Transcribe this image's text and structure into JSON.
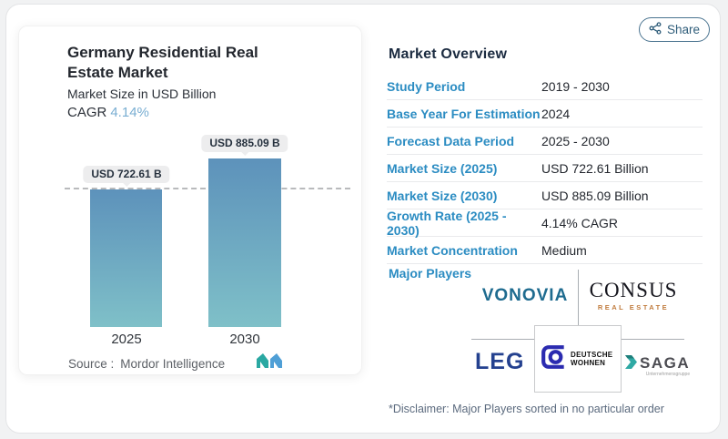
{
  "share": {
    "label": "Share"
  },
  "chart_card": {
    "title": "Germany Residential Real Estate Market",
    "subtitle": "Market Size in USD Billion",
    "cagr_label": "CAGR",
    "cagr_value": "4.14%",
    "source_label": "Source :",
    "source_value": "Mordor Intelligence"
  },
  "chart_data": {
    "type": "bar",
    "title": "Germany Residential Real Estate Market",
    "ylabel": "Market Size in USD Billion",
    "categories": [
      "2025",
      "2030"
    ],
    "values": [
      722.61,
      885.09
    ],
    "value_labels": [
      "USD 722.61 B",
      "USD 885.09 B"
    ],
    "ylim": [
      0,
      885.09
    ],
    "dashed_reference_value": 722.61,
    "grid": false,
    "legend": "none",
    "bar_gradient_top": "#5d92bb",
    "bar_gradient_bottom": "#7fc0c8"
  },
  "overview": {
    "heading": "Market Overview",
    "rows": [
      {
        "label": "Study Period",
        "value": "2019 - 2030"
      },
      {
        "label": "Base Year For Estimation",
        "value": "2024"
      },
      {
        "label": "Forecast Data Period",
        "value": "2025 - 2030"
      },
      {
        "label": "Market Size (2025)",
        "value": "USD 722.61 Billion"
      },
      {
        "label": "Market Size (2030)",
        "value": "USD 885.09 Billion"
      },
      {
        "label": "Growth Rate (2025 - 2030)",
        "value": "4.14% CAGR"
      },
      {
        "label": "Market Concentration",
        "value": "Medium"
      }
    ],
    "major_players_label": "Major Players",
    "disclaimer": "*Disclaimer: Major Players sorted in no particular order"
  },
  "logos": {
    "vonovia": "VONOVIA",
    "consus_name": "CONSUS",
    "consus_sub": "REAL ESTATE",
    "leg": "LEG",
    "dw_line1": "DEUTSCHE",
    "dw_line2": "WOHNEN",
    "saga": "SAGA",
    "saga_sub": "Unternehmensgruppe"
  },
  "icons": {
    "share": "share-nodes-icon",
    "mi_logo": "mordor-intelligence-logo",
    "dw_glyph": "deutsche-wohnen-mark",
    "saga_chevron": "saga-chevron-icon"
  },
  "colors": {
    "accent_blue": "#2b8cc2",
    "cagr_value": "#79aed2",
    "heading_navy": "#1b2b40",
    "vonovia": "#1e6b8f",
    "leg": "#24418f",
    "consus_sub": "#c07b3d",
    "saga_teal": "#2fa9a4",
    "bar_top": "#5d92bb",
    "bar_bottom": "#7fc0c8"
  }
}
